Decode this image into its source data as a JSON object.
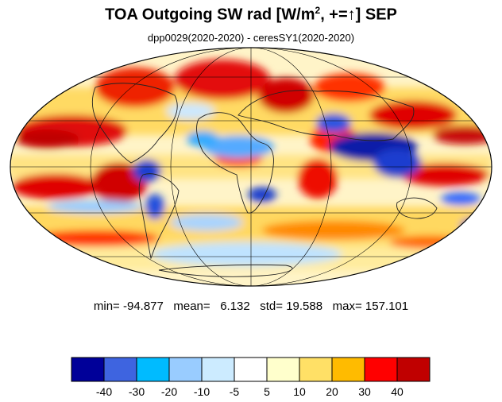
{
  "title": {
    "main": "TOA Outgoing SW rad [W/m",
    "sup": "2",
    "rest": ", +=↑] SEP"
  },
  "subtitle": "dpp0029(2020-2020) - ceresSY1(2020-2020)",
  "stats": {
    "min_label": "min=",
    "min": "-94.877",
    "mean_label": "mean=",
    "mean": "6.132",
    "std_label": "std=",
    "std": "19.588",
    "max_label": "max=",
    "max": "157.101"
  },
  "map": {
    "projection": "mollweide",
    "graticule": true,
    "coastlines": true
  },
  "colorbar": {
    "colors": [
      "#000099",
      "#3e64e0",
      "#00bbff",
      "#99ccff",
      "#ccebff",
      "#ffffff",
      "#ffffcc",
      "#ffe066",
      "#ffbb00",
      "#ff0000",
      "#c00000"
    ],
    "labels": [
      "-40",
      "-30",
      "-20",
      "-10",
      "-5",
      "5",
      "10",
      "20",
      "30",
      "40"
    ]
  }
}
